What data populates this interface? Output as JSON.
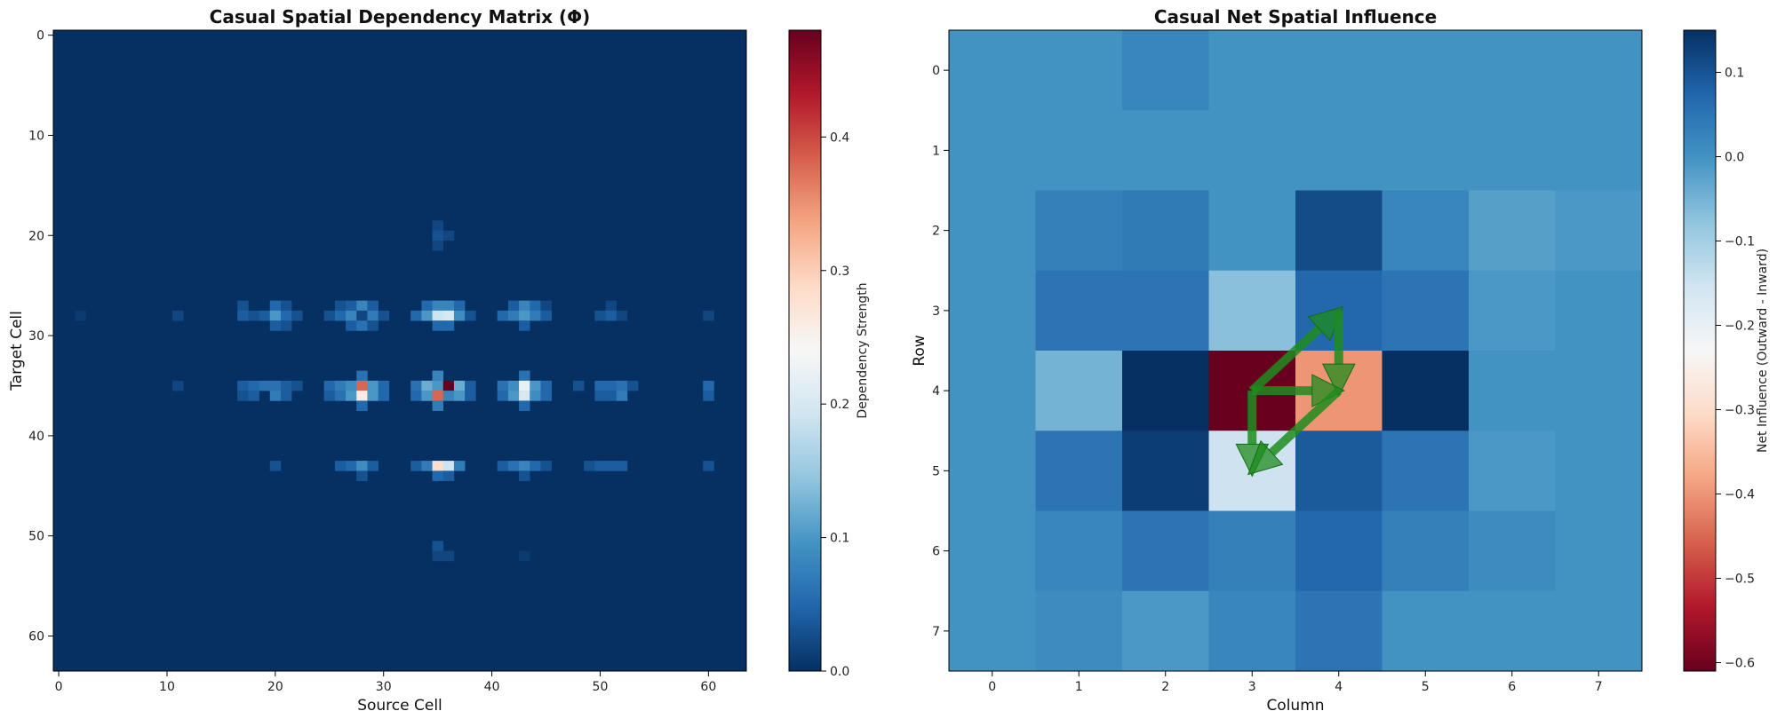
{
  "chart_data": [
    {
      "type": "heatmap",
      "title": "Casual Spatial Dependency Matrix (Φ)",
      "xlabel": "Source Cell",
      "ylabel": "Target Cell",
      "size": 64,
      "xlim": [
        -0.5,
        63.5
      ],
      "ylim": [
        63.5,
        -0.5
      ],
      "xticks": [
        0,
        10,
        20,
        30,
        40,
        50,
        60
      ],
      "yticks": [
        0,
        10,
        20,
        30,
        40,
        50,
        60
      ],
      "colormap": "RdBu",
      "background_value": 0.0,
      "colorbar": {
        "label": "Dependency Strength",
        "range": [
          0.0,
          0.48
        ],
        "ticks": [
          0.0,
          0.1,
          0.2,
          0.3,
          0.4
        ]
      },
      "points": [
        [
          35,
          19,
          0.02
        ],
        [
          35,
          20,
          0.03
        ],
        [
          36,
          20,
          0.02
        ],
        [
          35,
          21,
          0.02
        ],
        [
          17,
          27,
          0.03
        ],
        [
          20,
          27,
          0.05
        ],
        [
          21,
          27,
          0.03
        ],
        [
          26,
          27,
          0.03
        ],
        [
          27,
          27,
          0.04
        ],
        [
          28,
          27,
          0.08
        ],
        [
          29,
          27,
          0.04
        ],
        [
          34,
          27,
          0.05
        ],
        [
          35,
          27,
          0.08
        ],
        [
          36,
          27,
          0.08
        ],
        [
          37,
          27,
          0.05
        ],
        [
          42,
          27,
          0.04
        ],
        [
          43,
          27,
          0.08
        ],
        [
          44,
          27,
          0.05
        ],
        [
          45,
          27,
          0.02
        ],
        [
          51,
          27,
          0.02
        ],
        [
          2,
          28,
          0.01
        ],
        [
          11,
          28,
          0.02
        ],
        [
          17,
          28,
          0.04
        ],
        [
          18,
          28,
          0.03
        ],
        [
          19,
          28,
          0.04
        ],
        [
          20,
          28,
          0.1
        ],
        [
          21,
          28,
          0.05
        ],
        [
          22,
          28,
          0.03
        ],
        [
          25,
          28,
          0.03
        ],
        [
          26,
          28,
          0.05
        ],
        [
          27,
          28,
          0.08
        ],
        [
          28,
          28,
          0.02
        ],
        [
          29,
          28,
          0.07
        ],
        [
          30,
          28,
          0.03
        ],
        [
          33,
          28,
          0.05
        ],
        [
          34,
          28,
          0.1
        ],
        [
          35,
          28,
          0.19
        ],
        [
          36,
          28,
          0.2
        ],
        [
          37,
          28,
          0.09
        ],
        [
          38,
          28,
          0.03
        ],
        [
          41,
          28,
          0.05
        ],
        [
          42,
          28,
          0.07
        ],
        [
          43,
          28,
          0.1
        ],
        [
          44,
          28,
          0.07
        ],
        [
          45,
          28,
          0.04
        ],
        [
          50,
          28,
          0.03
        ],
        [
          51,
          28,
          0.04
        ],
        [
          52,
          28,
          0.02
        ],
        [
          60,
          28,
          0.02
        ],
        [
          20,
          29,
          0.04
        ],
        [
          21,
          29,
          0.03
        ],
        [
          27,
          29,
          0.04
        ],
        [
          28,
          29,
          0.06
        ],
        [
          29,
          29,
          0.03
        ],
        [
          35,
          29,
          0.05
        ],
        [
          36,
          29,
          0.05
        ],
        [
          43,
          29,
          0.04
        ],
        [
          28,
          34,
          0.06
        ],
        [
          35,
          34,
          0.08
        ],
        [
          43,
          34,
          0.06
        ],
        [
          11,
          35,
          0.02
        ],
        [
          17,
          35,
          0.04
        ],
        [
          18,
          35,
          0.05
        ],
        [
          19,
          35,
          0.06
        ],
        [
          20,
          35,
          0.06
        ],
        [
          21,
          35,
          0.04
        ],
        [
          22,
          35,
          0.03
        ],
        [
          25,
          35,
          0.05
        ],
        [
          26,
          35,
          0.07
        ],
        [
          27,
          35,
          0.09
        ],
        [
          28,
          35,
          0.38
        ],
        [
          29,
          35,
          0.1
        ],
        [
          30,
          35,
          0.05
        ],
        [
          33,
          35,
          0.06
        ],
        [
          34,
          35,
          0.12
        ],
        [
          35,
          35,
          0.1
        ],
        [
          36,
          35,
          0.48
        ],
        [
          37,
          35,
          0.12
        ],
        [
          38,
          35,
          0.04
        ],
        [
          41,
          35,
          0.06
        ],
        [
          42,
          35,
          0.09
        ],
        [
          43,
          35,
          0.22
        ],
        [
          44,
          35,
          0.1
        ],
        [
          45,
          35,
          0.05
        ],
        [
          48,
          35,
          0.03
        ],
        [
          50,
          35,
          0.05
        ],
        [
          51,
          35,
          0.05
        ],
        [
          52,
          35,
          0.06
        ],
        [
          53,
          35,
          0.03
        ],
        [
          60,
          35,
          0.05
        ],
        [
          17,
          36,
          0.03
        ],
        [
          18,
          36,
          0.04
        ],
        [
          20,
          36,
          0.07
        ],
        [
          21,
          36,
          0.04
        ],
        [
          25,
          36,
          0.04
        ],
        [
          26,
          36,
          0.06
        ],
        [
          27,
          36,
          0.1
        ],
        [
          28,
          36,
          0.26
        ],
        [
          29,
          36,
          0.1
        ],
        [
          30,
          36,
          0.05
        ],
        [
          33,
          36,
          0.05
        ],
        [
          34,
          36,
          0.1
        ],
        [
          35,
          36,
          0.38
        ],
        [
          36,
          36,
          0.08
        ],
        [
          37,
          36,
          0.1
        ],
        [
          38,
          36,
          0.04
        ],
        [
          41,
          36,
          0.05
        ],
        [
          42,
          36,
          0.1
        ],
        [
          43,
          36,
          0.2
        ],
        [
          44,
          36,
          0.09
        ],
        [
          45,
          36,
          0.05
        ],
        [
          50,
          36,
          0.04
        ],
        [
          51,
          36,
          0.04
        ],
        [
          52,
          36,
          0.07
        ],
        [
          60,
          36,
          0.04
        ],
        [
          28,
          37,
          0.05
        ],
        [
          35,
          37,
          0.07
        ],
        [
          43,
          37,
          0.05
        ],
        [
          20,
          43,
          0.03
        ],
        [
          26,
          43,
          0.04
        ],
        [
          27,
          43,
          0.05
        ],
        [
          28,
          43,
          0.09
        ],
        [
          29,
          43,
          0.04
        ],
        [
          33,
          43,
          0.04
        ],
        [
          34,
          43,
          0.07
        ],
        [
          35,
          43,
          0.28
        ],
        [
          36,
          43,
          0.19
        ],
        [
          37,
          43,
          0.07
        ],
        [
          41,
          43,
          0.04
        ],
        [
          42,
          43,
          0.06
        ],
        [
          43,
          43,
          0.08
        ],
        [
          44,
          43,
          0.05
        ],
        [
          45,
          43,
          0.03
        ],
        [
          49,
          43,
          0.03
        ],
        [
          50,
          43,
          0.04
        ],
        [
          51,
          43,
          0.04
        ],
        [
          52,
          43,
          0.04
        ],
        [
          60,
          43,
          0.03
        ],
        [
          28,
          44,
          0.03
        ],
        [
          35,
          44,
          0.05
        ],
        [
          36,
          44,
          0.04
        ],
        [
          43,
          44,
          0.03
        ],
        [
          35,
          51,
          0.03
        ],
        [
          35,
          52,
          0.02
        ],
        [
          36,
          52,
          0.02
        ],
        [
          43,
          52,
          0.01
        ]
      ]
    },
    {
      "type": "heatmap",
      "title": "Casual Net Spatial Influence",
      "xlabel": "Column",
      "ylabel": "Row",
      "rows": 8,
      "cols": 8,
      "xlim": [
        -0.5,
        7.5
      ],
      "ylim": [
        7.5,
        -0.5
      ],
      "xticks": [
        0,
        1,
        2,
        3,
        4,
        5,
        6,
        7
      ],
      "yticks": [
        0,
        1,
        2,
        3,
        4,
        5,
        6,
        7
      ],
      "colormap": "RdBu",
      "colorbar": {
        "label": "Net Influence (Outward - Inward)",
        "range": [
          -0.61,
          0.15
        ],
        "ticks": [
          0.1,
          0.0,
          -0.1,
          -0.2,
          -0.3,
          -0.4,
          -0.5,
          -0.6
        ]
      },
      "values": [
        [
          0.0,
          0.0,
          0.02,
          0.0,
          0.0,
          0.0,
          0.0,
          0.0
        ],
        [
          0.0,
          0.0,
          0.0,
          0.0,
          0.0,
          0.0,
          0.0,
          0.0
        ],
        [
          0.0,
          0.03,
          0.04,
          0.0,
          0.11,
          0.02,
          -0.02,
          -0.01
        ],
        [
          0.0,
          0.05,
          0.05,
          -0.07,
          0.07,
          0.05,
          -0.01,
          0.0
        ],
        [
          0.0,
          -0.05,
          0.15,
          -0.61,
          -0.4,
          0.15,
          0.0,
          0.0
        ],
        [
          0.0,
          0.05,
          0.13,
          -0.15,
          0.09,
          0.05,
          -0.01,
          0.0
        ],
        [
          0.0,
          0.02,
          0.05,
          0.03,
          0.07,
          0.03,
          0.01,
          0.0
        ],
        [
          0.0,
          0.01,
          -0.01,
          0.02,
          0.05,
          0.0,
          0.0,
          0.0
        ]
      ],
      "arrows": [
        {
          "from": [
            3,
            4
          ],
          "to": [
            4,
            3
          ]
        },
        {
          "from": [
            4,
            3
          ],
          "to": [
            4,
            4
          ]
        },
        {
          "from": [
            3,
            4
          ],
          "to": [
            4,
            4
          ]
        },
        {
          "from": [
            3,
            4
          ],
          "to": [
            3,
            5
          ]
        },
        {
          "from": [
            4,
            4
          ],
          "to": [
            3,
            5
          ]
        }
      ],
      "arrow_color": "#1e8c1e"
    }
  ]
}
